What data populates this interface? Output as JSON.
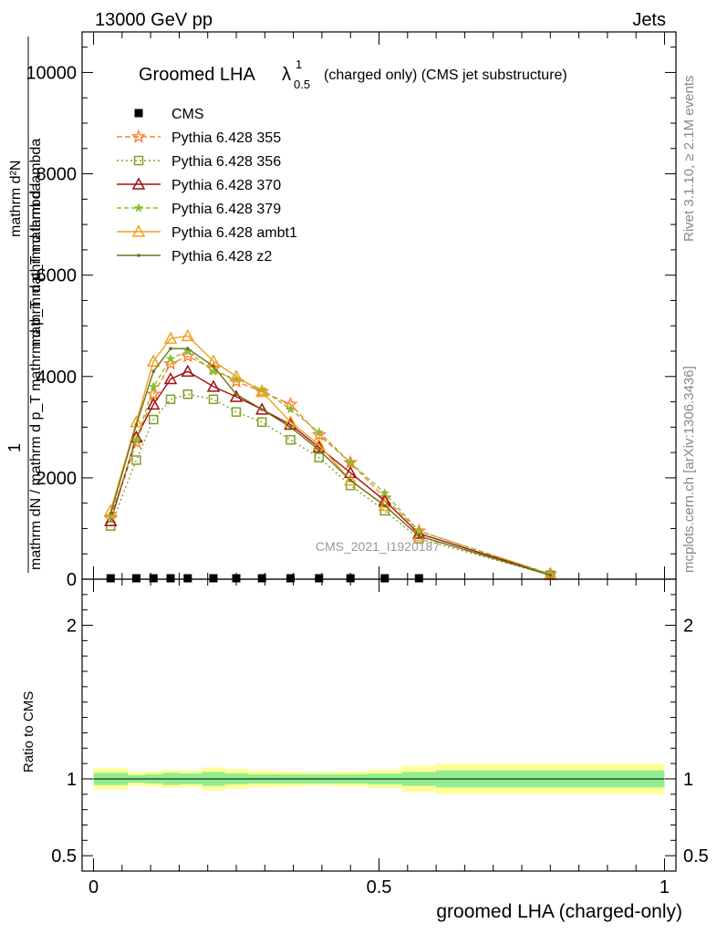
{
  "header": {
    "energy_label": "13000 GeV pp",
    "category_label": "Jets"
  },
  "side_labels": {
    "rivet": "Rivet 3.1.10, ≥ 2.1M events",
    "mcplots": "mcplots.cern.ch [arXiv:1306.3436]"
  },
  "watermark": "CMS_2021_I1920187",
  "chart_data": [
    {
      "type": "line",
      "title": "Groomed LHA",
      "title_symbol": "λ",
      "title_symbol_sup": "1",
      "title_symbol_sub": "0.5",
      "title_suffix": "(charged only) (CMS jet substructure)",
      "ylabel_top": "1",
      "ylabel_bottom": "mathrm dN / mathrm d p_T mathrm d p_T mathrm d lambda",
      "ylabel_left_line1": "mathrm d²N",
      "ylabel_left_line2": "mathrm d p_T mathrm d lambda",
      "xlim": [
        -0.02,
        1.02
      ],
      "ylim": [
        0,
        10800
      ],
      "yticks": [
        0,
        2000,
        4000,
        6000,
        8000,
        10000
      ],
      "yticklabels": [
        "0",
        "2000",
        "4000",
        "6000",
        "8000",
        "10000"
      ],
      "x": [
        0.03,
        0.075,
        0.105,
        0.135,
        0.165,
        0.21,
        0.25,
        0.295,
        0.345,
        0.395,
        0.45,
        0.51,
        0.57,
        0.8
      ],
      "series": [
        {
          "name": "CMS",
          "color": "#000000",
          "marker": "square-filled",
          "dash": "none",
          "values": [
            0,
            0,
            0,
            0,
            0,
            0,
            0,
            0,
            0,
            0,
            0,
            0,
            0,
            0
          ]
        },
        {
          "name": "Pythia 6.428 355",
          "color": "#ff7f2a",
          "marker": "star",
          "dash": "6,3",
          "values": [
            1200,
            2700,
            3650,
            4250,
            4400,
            4150,
            3900,
            3700,
            3450,
            2850,
            2300,
            1600,
            950,
            100
          ]
        },
        {
          "name": "Pythia 6.428 356",
          "color": "#7fa02a",
          "marker": "square-open",
          "dash": "2,3",
          "values": [
            1050,
            2350,
            3150,
            3550,
            3650,
            3550,
            3300,
            3100,
            2750,
            2400,
            1850,
            1350,
            800,
            80
          ]
        },
        {
          "name": "Pythia 6.428 370",
          "color": "#a01010",
          "marker": "triangle-open",
          "dash": "none",
          "values": [
            1150,
            2800,
            3450,
            3950,
            4100,
            3800,
            3600,
            3350,
            3050,
            2600,
            2100,
            1550,
            900,
            90
          ]
        },
        {
          "name": "Pythia 6.428 379",
          "color": "#88c030",
          "marker": "star-small",
          "dash": "5,3",
          "values": [
            1250,
            2750,
            3800,
            4350,
            4500,
            4100,
            3950,
            3750,
            3350,
            2900,
            2300,
            1700,
            950,
            100
          ]
        },
        {
          "name": "Pythia 6.428 ambt1",
          "color": "#f0a020",
          "marker": "triangle-open",
          "dash": "none",
          "values": [
            1350,
            3100,
            4300,
            4750,
            4800,
            4300,
            4000,
            3700,
            3100,
            2650,
            1950,
            1450,
            850,
            80
          ]
        },
        {
          "name": "Pythia 6.428 z2",
          "color": "#707018",
          "marker": "dot",
          "dash": "none",
          "values": [
            1300,
            3050,
            4100,
            4550,
            4550,
            4200,
            3650,
            3350,
            3000,
            2550,
            1950,
            1450,
            850,
            80
          ]
        }
      ],
      "cms_x": [
        0.03,
        0.075,
        0.105,
        0.135,
        0.165,
        0.21,
        0.25,
        0.295,
        0.345,
        0.395,
        0.45,
        0.51,
        0.57
      ]
    },
    {
      "type": "area",
      "ylabel": "Ratio to CMS",
      "xlabel": "groomed LHA (charged-only)",
      "xlim": [
        -0.02,
        1.02
      ],
      "ylim": [
        0.4,
        2.3
      ],
      "yticks": [
        0.5,
        1,
        2
      ],
      "yticklabels": [
        "0.5",
        "1",
        "2"
      ],
      "xticks": [
        0,
        0.5,
        1
      ],
      "xticklabels": [
        "0",
        "0.5",
        "1"
      ],
      "bin_edges": [
        0,
        0.06,
        0.09,
        0.12,
        0.15,
        0.19,
        0.23,
        0.27,
        0.32,
        0.37,
        0.42,
        0.48,
        0.54,
        0.6,
        1.0
      ],
      "stat_band": {
        "color": "#90ee90",
        "lower": [
          0.96,
          0.975,
          0.97,
          0.96,
          0.965,
          0.955,
          0.965,
          0.97,
          0.97,
          0.97,
          0.97,
          0.965,
          0.955,
          0.945
        ],
        "upper": [
          1.04,
          1.025,
          1.03,
          1.04,
          1.035,
          1.045,
          1.035,
          1.03,
          1.03,
          1.03,
          1.03,
          1.035,
          1.045,
          1.055
        ]
      },
      "total_band": {
        "color": "#ffff99",
        "lower": [
          0.93,
          0.955,
          0.95,
          0.94,
          0.945,
          0.925,
          0.935,
          0.945,
          0.95,
          0.955,
          0.95,
          0.94,
          0.915,
          0.9
        ],
        "upper": [
          1.07,
          1.045,
          1.05,
          1.06,
          1.055,
          1.075,
          1.065,
          1.055,
          1.05,
          1.045,
          1.05,
          1.06,
          1.085,
          1.1
        ]
      },
      "reference_value": 1
    }
  ]
}
